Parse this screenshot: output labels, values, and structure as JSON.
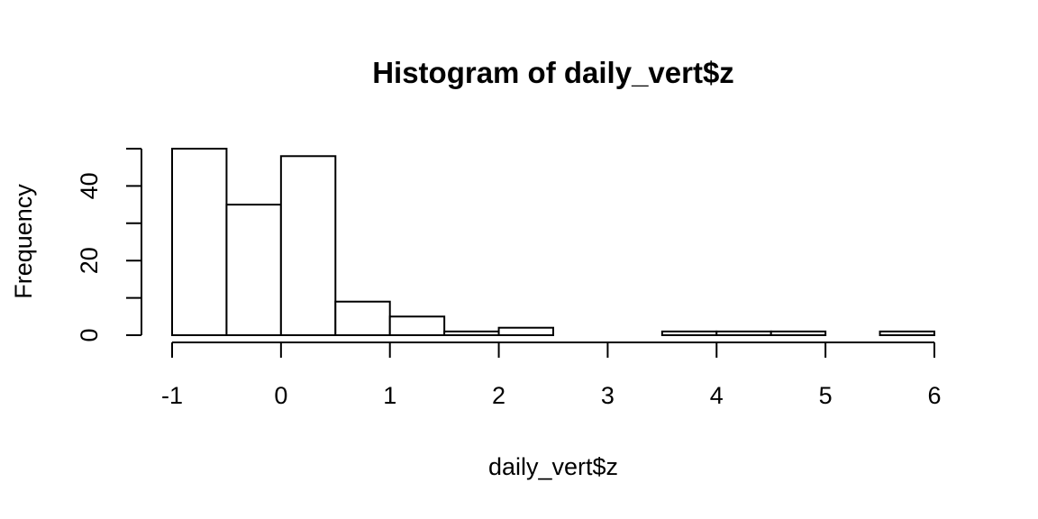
{
  "chart_data": {
    "type": "bar",
    "title": "Histogram of daily_vert$z",
    "xlabel": "daily_vert$z",
    "ylabel": "Frequency",
    "bins": [
      {
        "from": -1.0,
        "to": -0.5,
        "count": 50
      },
      {
        "from": -0.5,
        "to": 0.0,
        "count": 35
      },
      {
        "from": 0.0,
        "to": 0.5,
        "count": 48
      },
      {
        "from": 0.5,
        "to": 1.0,
        "count": 9
      },
      {
        "from": 1.0,
        "to": 1.5,
        "count": 5
      },
      {
        "from": 1.5,
        "to": 2.0,
        "count": 1
      },
      {
        "from": 2.0,
        "to": 2.5,
        "count": 2
      },
      {
        "from": 2.5,
        "to": 3.0,
        "count": 0
      },
      {
        "from": 3.0,
        "to": 3.5,
        "count": 0
      },
      {
        "from": 3.5,
        "to": 4.0,
        "count": 1
      },
      {
        "from": 4.0,
        "to": 4.5,
        "count": 1
      },
      {
        "from": 4.5,
        "to": 5.0,
        "count": 1
      },
      {
        "from": 5.0,
        "to": 5.5,
        "count": 0
      },
      {
        "from": 5.5,
        "to": 6.0,
        "count": 1
      }
    ],
    "xlim": [
      -1,
      6
    ],
    "ylim": [
      0,
      50
    ],
    "xticks": [
      -1,
      0,
      1,
      2,
      3,
      4,
      5,
      6
    ],
    "xtick_labels": [
      "-1",
      "0",
      "1",
      "2",
      "3",
      "4",
      "5",
      "6"
    ],
    "yticks": [
      0,
      10,
      20,
      30,
      40,
      50
    ],
    "ytick_labels": [
      "0",
      "20",
      "40"
    ],
    "ytick_label_values": [
      0,
      20,
      40
    ],
    "grid": false,
    "legend": "none",
    "bar_fill": "#ffffff",
    "bar_stroke": "#000000"
  }
}
